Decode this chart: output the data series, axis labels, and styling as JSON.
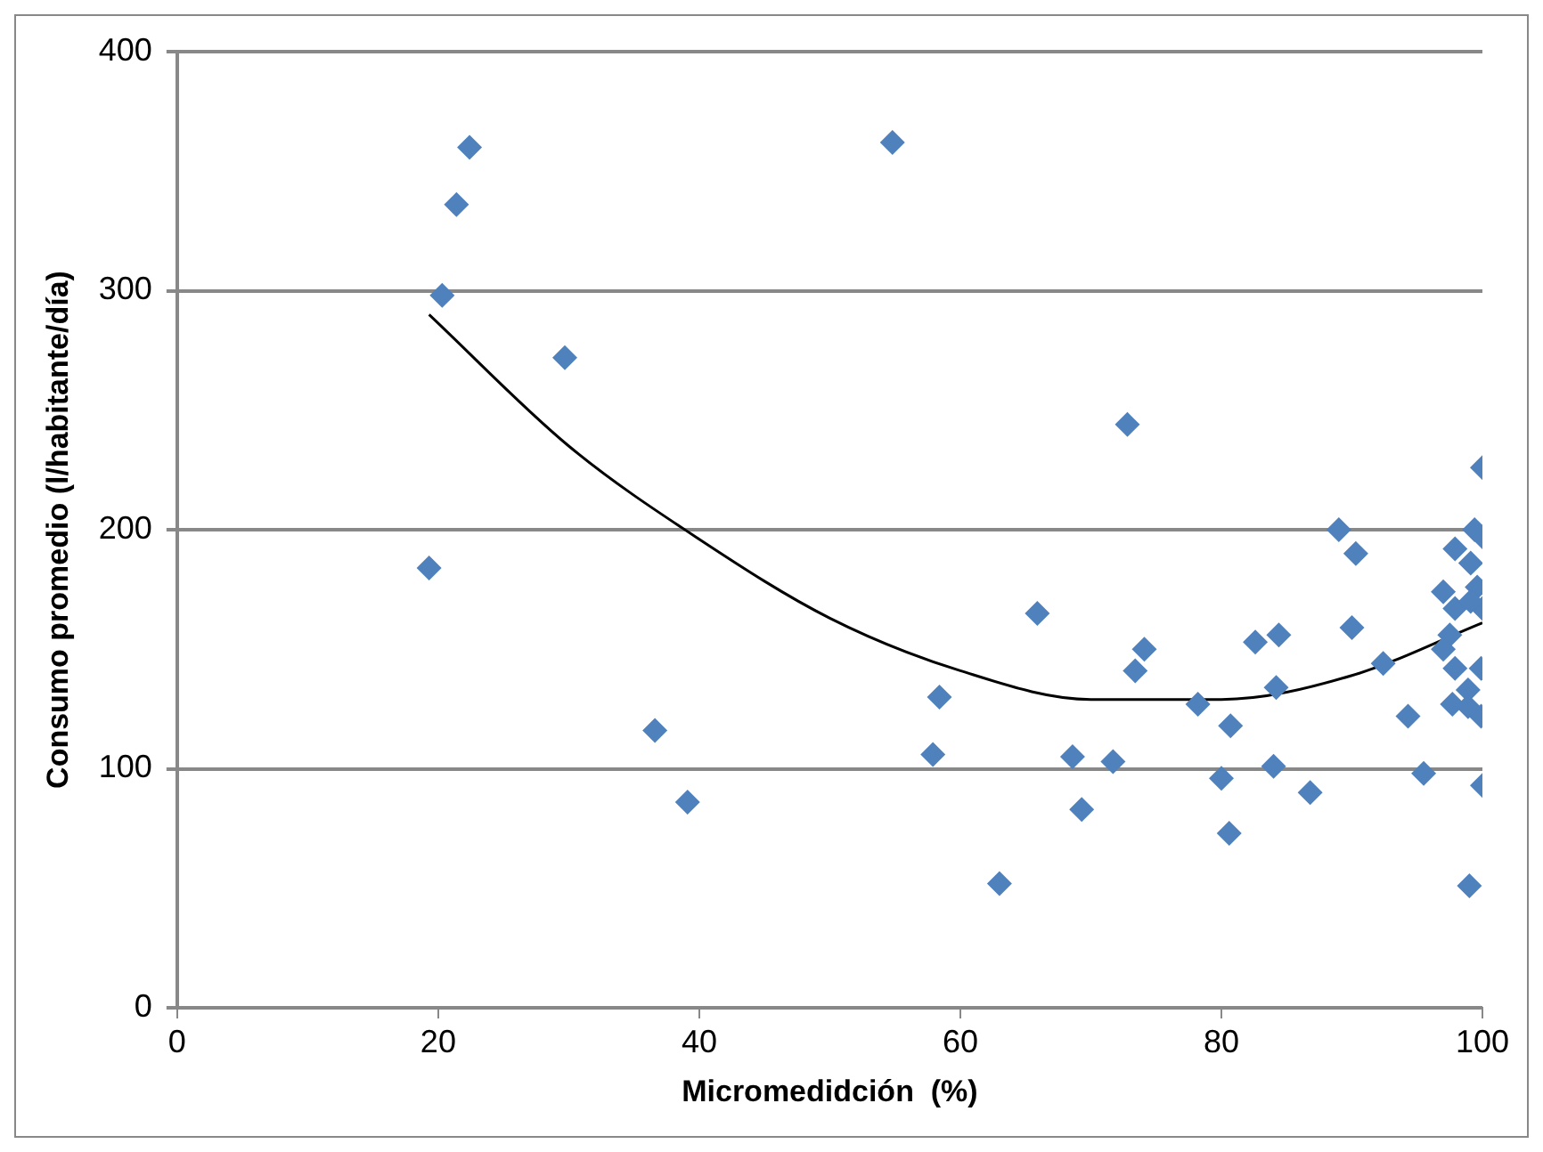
{
  "chart_data": {
    "type": "scatter",
    "xlabel": "Micromedidción  (%)",
    "ylabel": "Consumo promedio (l/habitante/día)",
    "xlim": [
      0,
      100
    ],
    "xticks": [
      0,
      20,
      40,
      60,
      80,
      100
    ],
    "ylim": [
      0,
      400
    ],
    "yticks": [
      0,
      100,
      200,
      300,
      400
    ],
    "grid": "y",
    "legend": false,
    "marker": "diamond",
    "series": [
      {
        "color": "#4f81bd",
        "x": [
          20.3,
          21.4,
          22.4,
          19.3,
          29.7,
          36.6,
          39.1,
          54.8,
          72.8,
          65.9,
          58.4,
          57.9,
          63.0,
          68.6,
          69.3,
          71.7,
          74.1,
          73.4,
          78.2,
          80.7,
          80.0,
          80.6,
          82.6,
          89.0,
          90.3,
          90.0,
          84.4,
          84.2,
          84.0,
          86.8,
          92.4,
          94.3,
          95.5,
          100,
          100,
          99.0,
          99.4,
          97.9,
          100,
          99.1,
          97.0,
          99.6,
          97.9,
          100,
          99.1,
          97.5,
          97.0,
          97.9,
          99.9,
          98.9,
          97.7,
          99.9,
          98.9
        ],
        "values": [
          298,
          336,
          360,
          184,
          272,
          116,
          86,
          362,
          244,
          165,
          130,
          106,
          52,
          105,
          83,
          103,
          150,
          141,
          127,
          118,
          96,
          73,
          153,
          200,
          190,
          159,
          156,
          134,
          101,
          90,
          144,
          122,
          98,
          226,
          93,
          51,
          200,
          192,
          197,
          186,
          174,
          176,
          167,
          167,
          170,
          156,
          150,
          142,
          142,
          133,
          127,
          122,
          126
        ]
      },
      {
        "type": "line",
        "color": "#000000",
        "marker": "none",
        "line_style": "solid",
        "x": [
          19.3,
          30,
          40,
          50,
          60,
          70,
          80,
          90,
          100
        ],
        "values": [
          290,
          235,
          196,
          163,
          141,
          129,
          129,
          139,
          161
        ]
      }
    ]
  }
}
